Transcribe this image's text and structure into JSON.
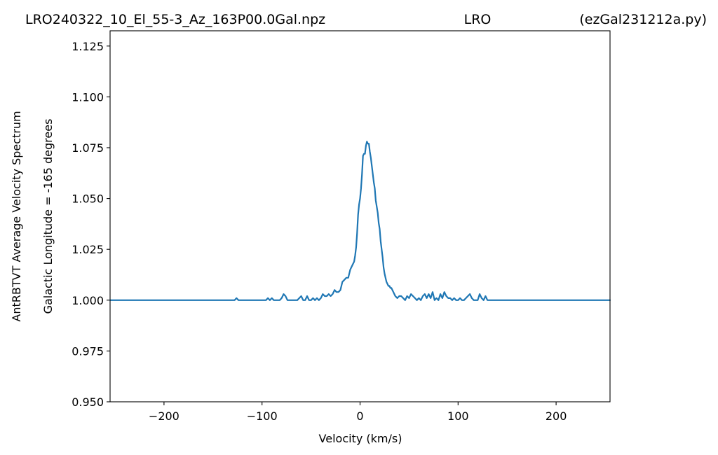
{
  "header": {
    "left": "LRO240322_10_El_55-3_Az_163P00.0Gal.npz",
    "center": "LRO",
    "right": "(ezGal231212a.py)"
  },
  "chart_data": {
    "type": "line",
    "title": "",
    "xlabel": "Velocity (km/s)",
    "ylabel": "AntRBTVT Average Velocity Spectrum",
    "ylabel2": "Galactic Longitude = -165 degrees",
    "xlim": [
      -255,
      255
    ],
    "ylim": [
      0.95,
      1.1325
    ],
    "xticks": [
      -200,
      -100,
      0,
      100,
      200
    ],
    "xtick_labels": [
      "−200",
      "−100",
      "0",
      "100",
      "200"
    ],
    "yticks": [
      0.95,
      0.975,
      1.0,
      1.025,
      1.05,
      1.075,
      1.1,
      1.125
    ],
    "ytick_labels": [
      "0.950",
      "0.975",
      "1.000",
      "1.025",
      "1.050",
      "1.075",
      "1.100",
      "1.125"
    ],
    "grid": false,
    "series": [
      {
        "color": "#1f77b4",
        "x": [
          -255,
          -128,
          -126,
          -124,
          -122,
          -118,
          -114,
          -110,
          -106,
          -100,
          -96,
          -94,
          -92,
          -90,
          -88,
          -86,
          -84,
          -82,
          -80,
          -78,
          -76,
          -74,
          -72,
          -70,
          -68,
          -66,
          -64,
          -62,
          -60,
          -58,
          -56,
          -54,
          -52,
          -50,
          -48,
          -46,
          -44,
          -42,
          -40,
          -38,
          -36,
          -34,
          -32,
          -30,
          -28,
          -26,
          -24,
          -22,
          -20,
          -18,
          -16,
          -14,
          -12,
          -10,
          -8,
          -6,
          -5,
          -4,
          -3,
          -2,
          -1,
          0,
          1,
          2,
          3,
          4,
          5,
          6,
          7,
          8,
          9,
          10,
          11,
          12,
          13,
          14,
          15,
          16,
          17,
          18,
          19,
          20,
          21,
          22,
          23,
          24,
          25,
          26,
          27,
          28,
          29,
          30,
          31,
          32,
          33,
          34,
          35,
          36,
          38,
          40,
          42,
          44,
          46,
          48,
          50,
          52,
          54,
          56,
          58,
          60,
          62,
          64,
          66,
          68,
          70,
          72,
          74,
          76,
          78,
          80,
          82,
          84,
          86,
          88,
          90,
          92,
          94,
          96,
          98,
          100,
          102,
          104,
          106,
          108,
          110,
          112,
          114,
          116,
          118,
          120,
          122,
          124,
          126,
          128,
          130,
          132,
          255
        ],
        "y": [
          1.0,
          1.0,
          1.001,
          1.0,
          1.0,
          1.0,
          1.0,
          1.0,
          1.0,
          1.0,
          1.0,
          1.001,
          1.0,
          1.001,
          1.0,
          1.0,
          1.0,
          1.0,
          1.001,
          1.003,
          1.002,
          1.0,
          1.0,
          1.0,
          1.0,
          1.0,
          1.0,
          1.001,
          1.002,
          1.0,
          1.0,
          1.002,
          1.0,
          1.0,
          1.001,
          1.0,
          1.001,
          1.0,
          1.001,
          1.003,
          1.002,
          1.002,
          1.003,
          1.002,
          1.003,
          1.005,
          1.004,
          1.004,
          1.005,
          1.009,
          1.01,
          1.011,
          1.011,
          1.015,
          1.017,
          1.019,
          1.022,
          1.026,
          1.033,
          1.042,
          1.047,
          1.05,
          1.055,
          1.062,
          1.071,
          1.072,
          1.072,
          1.076,
          1.078,
          1.077,
          1.077,
          1.073,
          1.07,
          1.066,
          1.062,
          1.058,
          1.055,
          1.049,
          1.046,
          1.043,
          1.038,
          1.035,
          1.029,
          1.025,
          1.021,
          1.016,
          1.013,
          1.011,
          1.009,
          1.008,
          1.007,
          1.007,
          1.006,
          1.006,
          1.005,
          1.004,
          1.003,
          1.002,
          1.001,
          1.002,
          1.002,
          1.001,
          1.0,
          1.002,
          1.001,
          1.003,
          1.002,
          1.001,
          1.0,
          1.001,
          1.0,
          1.002,
          1.003,
          1.001,
          1.003,
          1.001,
          1.004,
          1.0,
          1.001,
          1.0,
          1.003,
          1.001,
          1.004,
          1.002,
          1.001,
          1.001,
          1.0,
          1.001,
          1.0,
          1.0,
          1.001,
          1.0,
          1.0,
          1.001,
          1.002,
          1.003,
          1.001,
          1.0,
          1.0,
          1.0,
          1.003,
          1.001,
          1.0,
          1.002,
          1.0,
          1.0,
          1.0
        ]
      }
    ]
  }
}
